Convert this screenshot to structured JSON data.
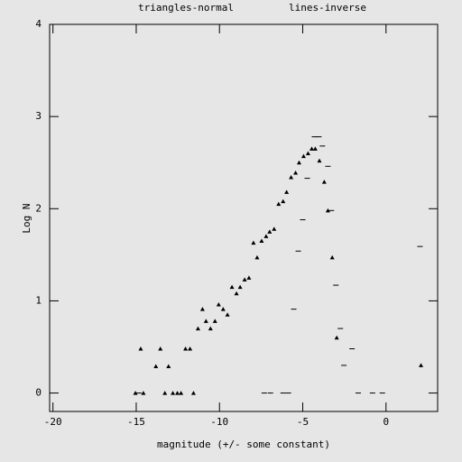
{
  "chart_data": {
    "type": "scatter",
    "x_label": "magnitude (+/- some constant)",
    "y_label": "Log N",
    "xlim": [
      -20.2,
      3.1
    ],
    "ylim": [
      -0.2,
      4
    ],
    "xticks": [
      -20,
      -15,
      -10,
      -5,
      0
    ],
    "yticks": [
      0,
      1,
      2,
      3,
      4
    ],
    "series": [
      {
        "name": "triangles-normal",
        "color": "#000000",
        "marker": "triangle",
        "x": [
          -15.05,
          -14.73,
          -14.57,
          -13.82,
          -13.55,
          -13.28,
          -13.06,
          -12.8,
          -12.53,
          -12.31,
          -12.04,
          -11.77,
          -11.56,
          -11.29,
          -11.02,
          -10.81,
          -10.54,
          -10.27,
          -10.05,
          -9.78,
          -9.52,
          -9.25,
          -8.98,
          -8.76,
          -8.49,
          -8.23,
          -7.96,
          -7.74,
          -7.47,
          -7.2,
          -6.99,
          -6.72,
          -6.45,
          -6.18,
          -5.97,
          -5.7,
          -5.43,
          -5.22,
          -4.95,
          -4.68,
          -4.46,
          -4.25,
          -4.0,
          -3.71,
          -3.49,
          -3.23,
          -2.96,
          2.1
        ],
        "values": [
          0,
          0.48,
          0,
          0.29,
          0.48,
          0,
          0.29,
          0,
          0,
          0,
          0.48,
          0.48,
          0,
          0.7,
          0.91,
          0.78,
          0.7,
          0.78,
          0.96,
          0.91,
          0.85,
          1.15,
          1.08,
          1.15,
          1.23,
          1.25,
          1.63,
          1.47,
          1.65,
          1.7,
          1.75,
          1.78,
          2.05,
          2.08,
          2.18,
          2.34,
          2.39,
          2.5,
          2.57,
          2.6,
          2.65,
          2.65,
          2.52,
          2.29,
          1.98,
          1.47,
          0.6,
          0.3
        ]
      },
      {
        "name": "lines-inverse",
        "color": "#000000",
        "marker": "dash",
        "x": [
          -14.84,
          -7.31,
          -6.94,
          -6.18,
          -5.86,
          -5.54,
          -5.27,
          -5.0,
          -4.73,
          -4.3,
          -4.03,
          -3.82,
          -3.49,
          -3.28,
          -3.01,
          -2.74,
          -2.53,
          -2.04,
          -1.67,
          -0.81,
          -0.22,
          2.04
        ],
        "values": [
          0,
          0,
          0,
          0,
          0,
          0.91,
          1.54,
          1.88,
          2.33,
          2.78,
          2.78,
          2.68,
          2.46,
          1.98,
          1.17,
          0.7,
          0.3,
          0.48,
          0,
          0,
          0,
          1.59
        ]
      }
    ]
  }
}
